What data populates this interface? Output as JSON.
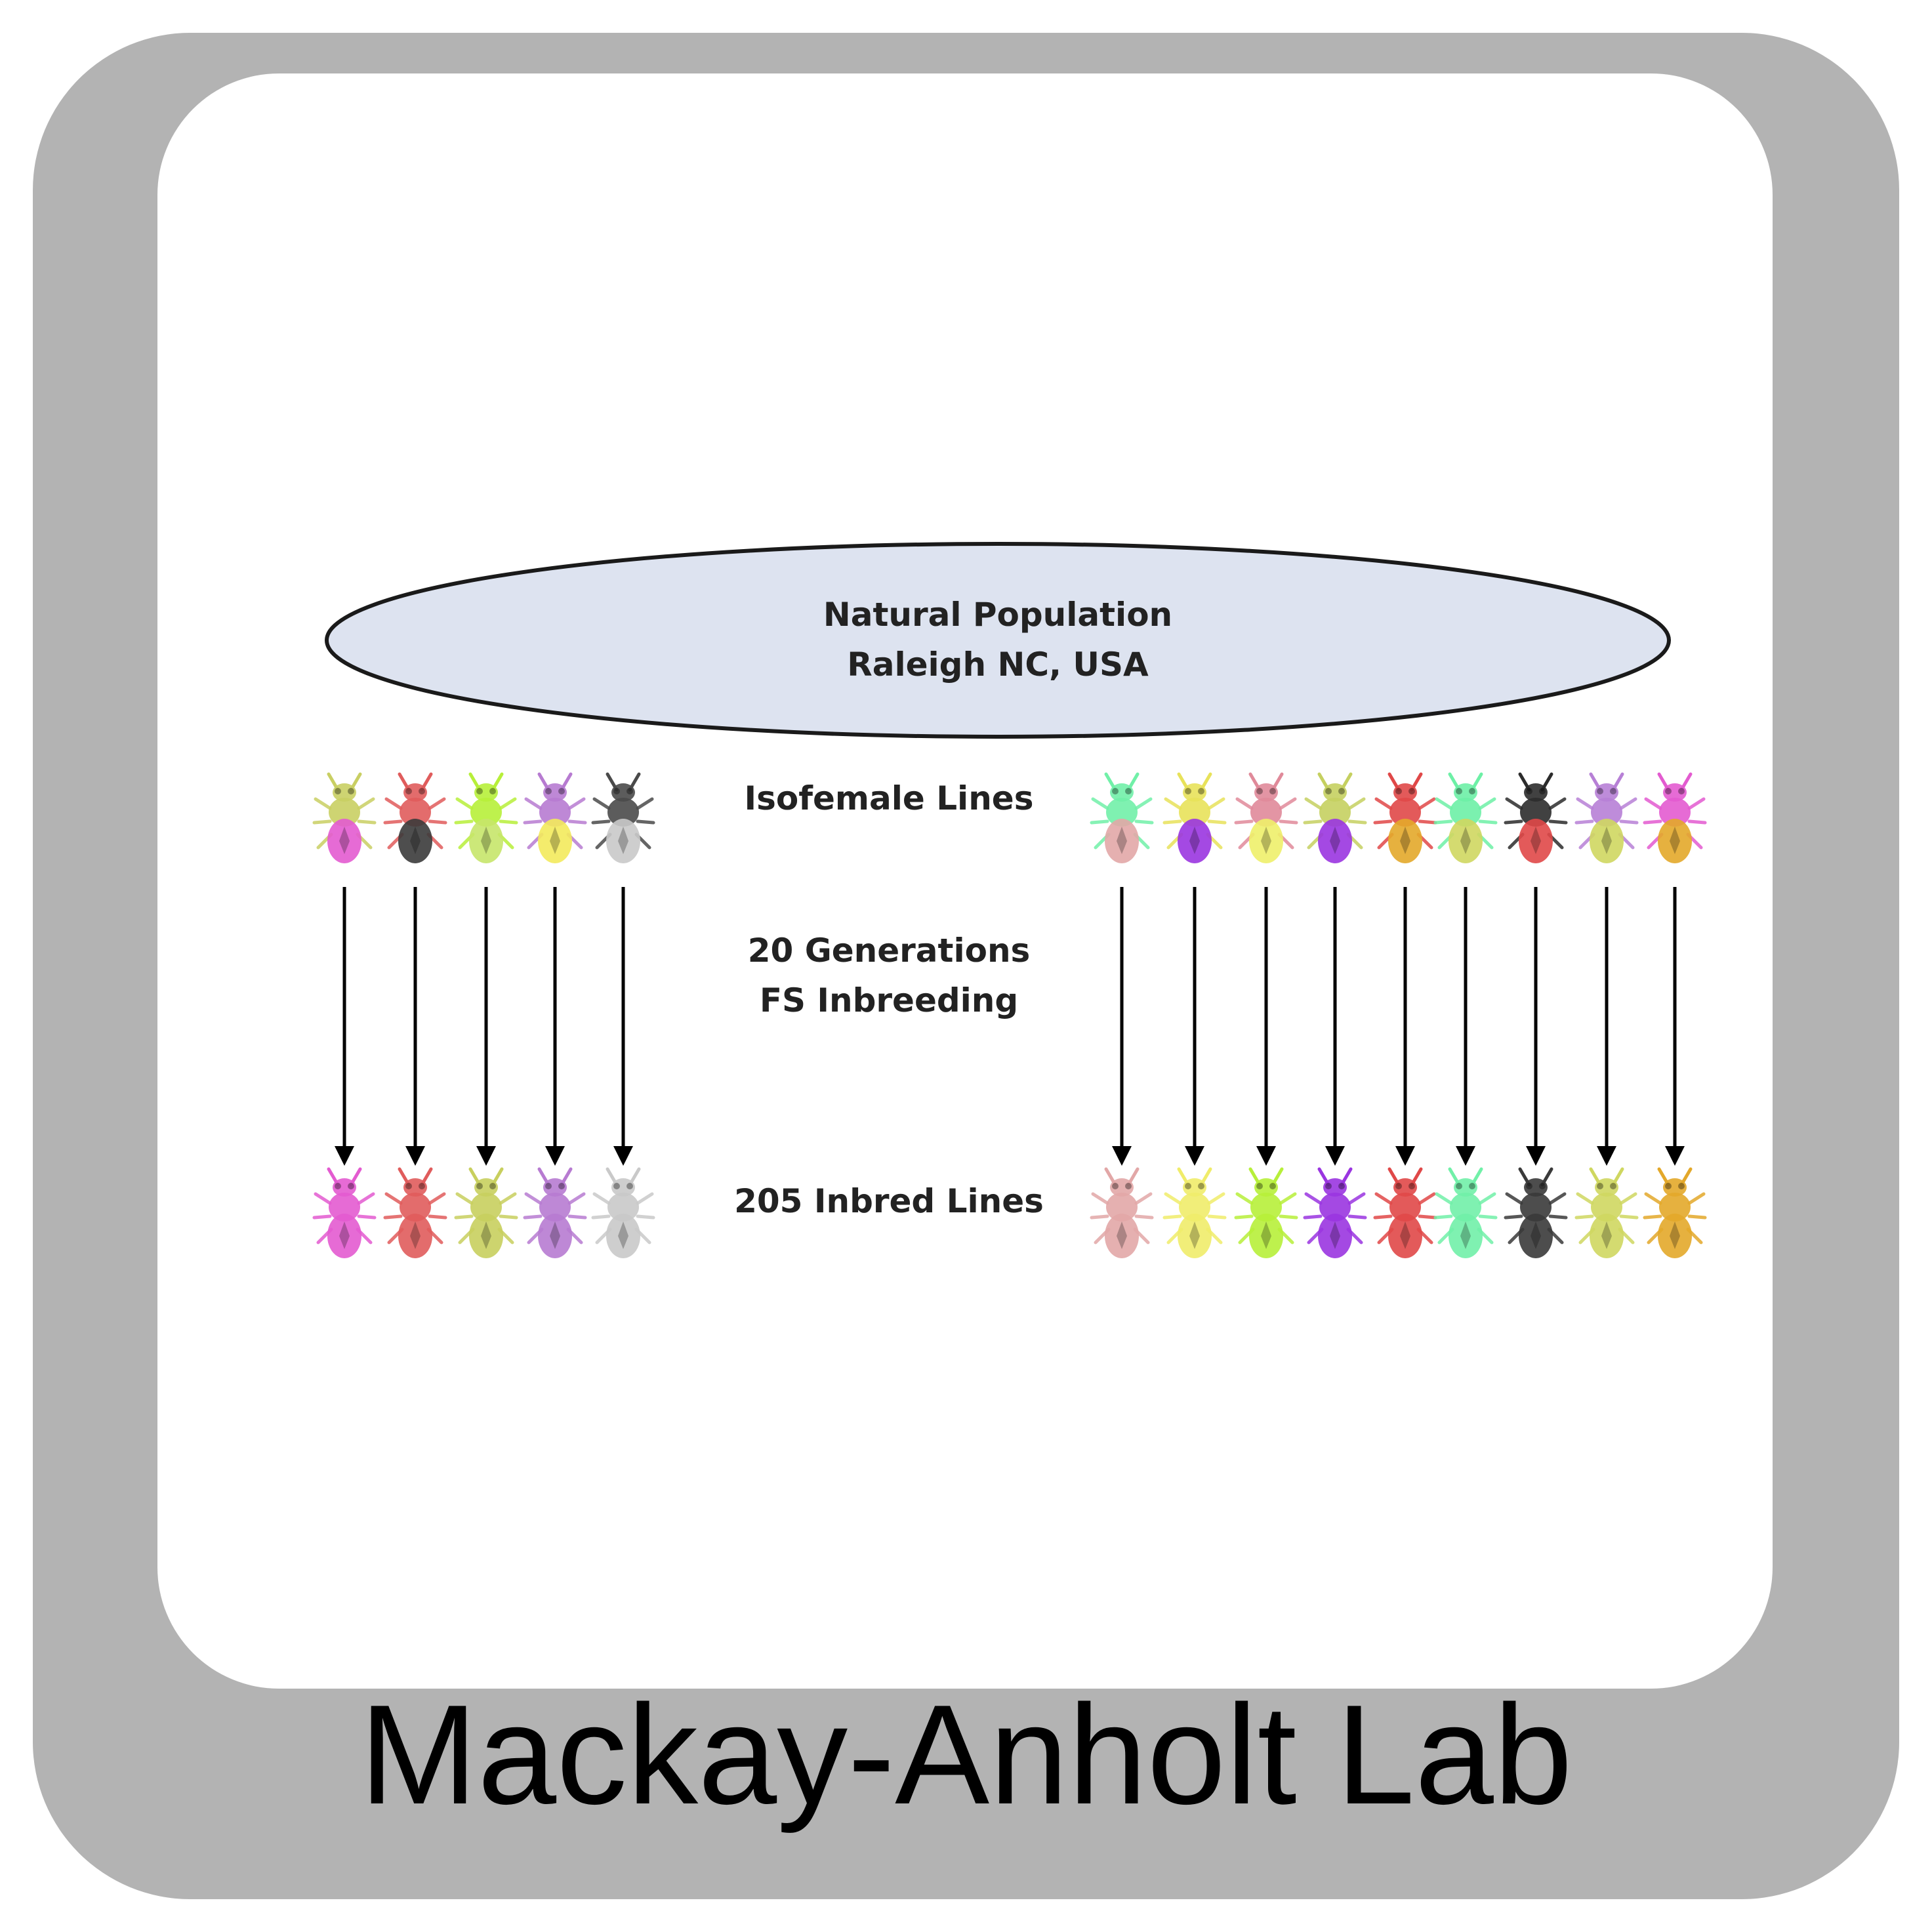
{
  "diagram": {
    "population_lines": [
      "Natural Population",
      "Raleigh NC, USA"
    ],
    "step_isofemale": "Isofemale Lines",
    "step_inbreeding_lines": [
      "20 Generations",
      "FS Inbreeding"
    ],
    "step_inbred": "205 Inbred Lines",
    "colors": {
      "population_fill": "#dde3f0",
      "population_stroke": "#1a1a1a",
      "arrow": "#000000",
      "frame": "#b3b3b3"
    },
    "isofemale_flies": [
      {
        "head": "#c9cf63",
        "body": "#e35bd0"
      },
      {
        "head": "#e05c5c",
        "body": "#3b3b3b"
      },
      {
        "head": "#b7ef3a",
        "body": "#c7e56a"
      },
      {
        "head": "#b77bd1",
        "body": "#f3ea5c"
      },
      {
        "head": "#4a4a4a",
        "body": "#c9c9c9"
      },
      {
        "head": "#71f0a8",
        "body": "#e2a7a7"
      },
      {
        "head": "#e8e25a",
        "body": "#9a35e0"
      },
      {
        "head": "#e08a9a",
        "body": "#eef06a"
      },
      {
        "head": "#c5d060",
        "body": "#9a35e0"
      },
      {
        "head": "#e04848",
        "body": "#e3a82a"
      },
      {
        "head": "#6df0a6",
        "body": "#cfd760"
      },
      {
        "head": "#2c2c2c",
        "body": "#e04848"
      },
      {
        "head": "#b780d6",
        "body": "#cfd760"
      },
      {
        "head": "#e35bd0",
        "body": "#e3a82a"
      }
    ],
    "inbred_flies": [
      {
        "head": "#e35bd0",
        "body": "#e35bd0"
      },
      {
        "head": "#e05c5c",
        "body": "#e05c5c"
      },
      {
        "head": "#c8cf5e",
        "body": "#c8cf5e"
      },
      {
        "head": "#b77bd1",
        "body": "#b77bd1"
      },
      {
        "head": "#c9c9c9",
        "body": "#c9c9c9"
      },
      {
        "head": "#e2a7a7",
        "body": "#e2a7a7"
      },
      {
        "head": "#f0ec6a",
        "body": "#f0ec6a"
      },
      {
        "head": "#b7ef3a",
        "body": "#b7ef3a"
      },
      {
        "head": "#9a35e0",
        "body": "#9a35e0"
      },
      {
        "head": "#e04848",
        "body": "#e04848"
      },
      {
        "head": "#71f0a8",
        "body": "#71f0a8"
      },
      {
        "head": "#3a3a3a",
        "body": "#3a3a3a"
      },
      {
        "head": "#cfd760",
        "body": "#cfd760"
      },
      {
        "head": "#e3a82a",
        "body": "#e3a82a"
      }
    ]
  },
  "footer": {
    "title": "Mackay-Anholt Lab"
  }
}
